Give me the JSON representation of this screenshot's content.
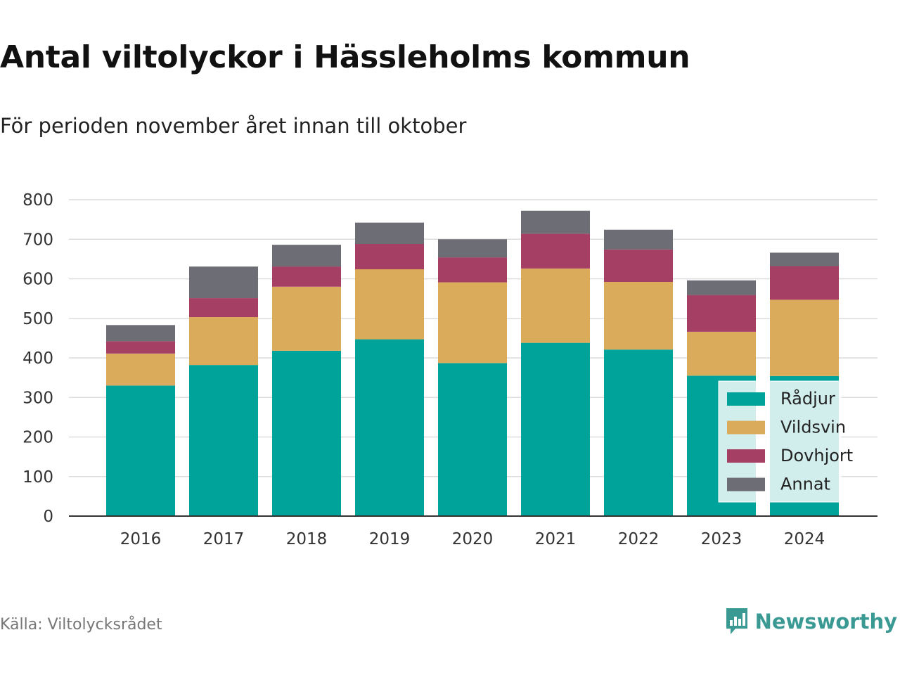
{
  "title": "Antal viltolyckor i Hässleholms kommun",
  "subtitle": "För perioden november året innan till oktober",
  "source": "Källa: Viltolycksrådet",
  "brand": {
    "name": "Newsworthy",
    "icon": "newsworthy-logo-icon",
    "color": "#3a9a93"
  },
  "chart_data": {
    "type": "bar",
    "stacked": true,
    "categories": [
      "2016",
      "2017",
      "2018",
      "2019",
      "2020",
      "2021",
      "2022",
      "2023",
      "2024"
    ],
    "series": [
      {
        "name": "Rådjur",
        "color": "#00a39a",
        "values": [
          330,
          382,
          418,
          447,
          387,
          438,
          421,
          355,
          354
        ]
      },
      {
        "name": "Vildsvin",
        "color": "#d9ab5a",
        "values": [
          81,
          121,
          162,
          177,
          204,
          188,
          171,
          111,
          193
        ]
      },
      {
        "name": "Dovhjort",
        "color": "#a53f64",
        "values": [
          31,
          48,
          51,
          64,
          63,
          88,
          82,
          93,
          85
        ]
      },
      {
        "name": "Annat",
        "color": "#6d6d75",
        "values": [
          41,
          80,
          55,
          54,
          46,
          58,
          50,
          37,
          34
        ]
      }
    ],
    "ylim": [
      0,
      800
    ],
    "yticks": [
      "0",
      "100",
      "200",
      "300",
      "400",
      "500",
      "600",
      "700",
      "800"
    ],
    "grid": true,
    "legend_position": "bottom-right"
  }
}
